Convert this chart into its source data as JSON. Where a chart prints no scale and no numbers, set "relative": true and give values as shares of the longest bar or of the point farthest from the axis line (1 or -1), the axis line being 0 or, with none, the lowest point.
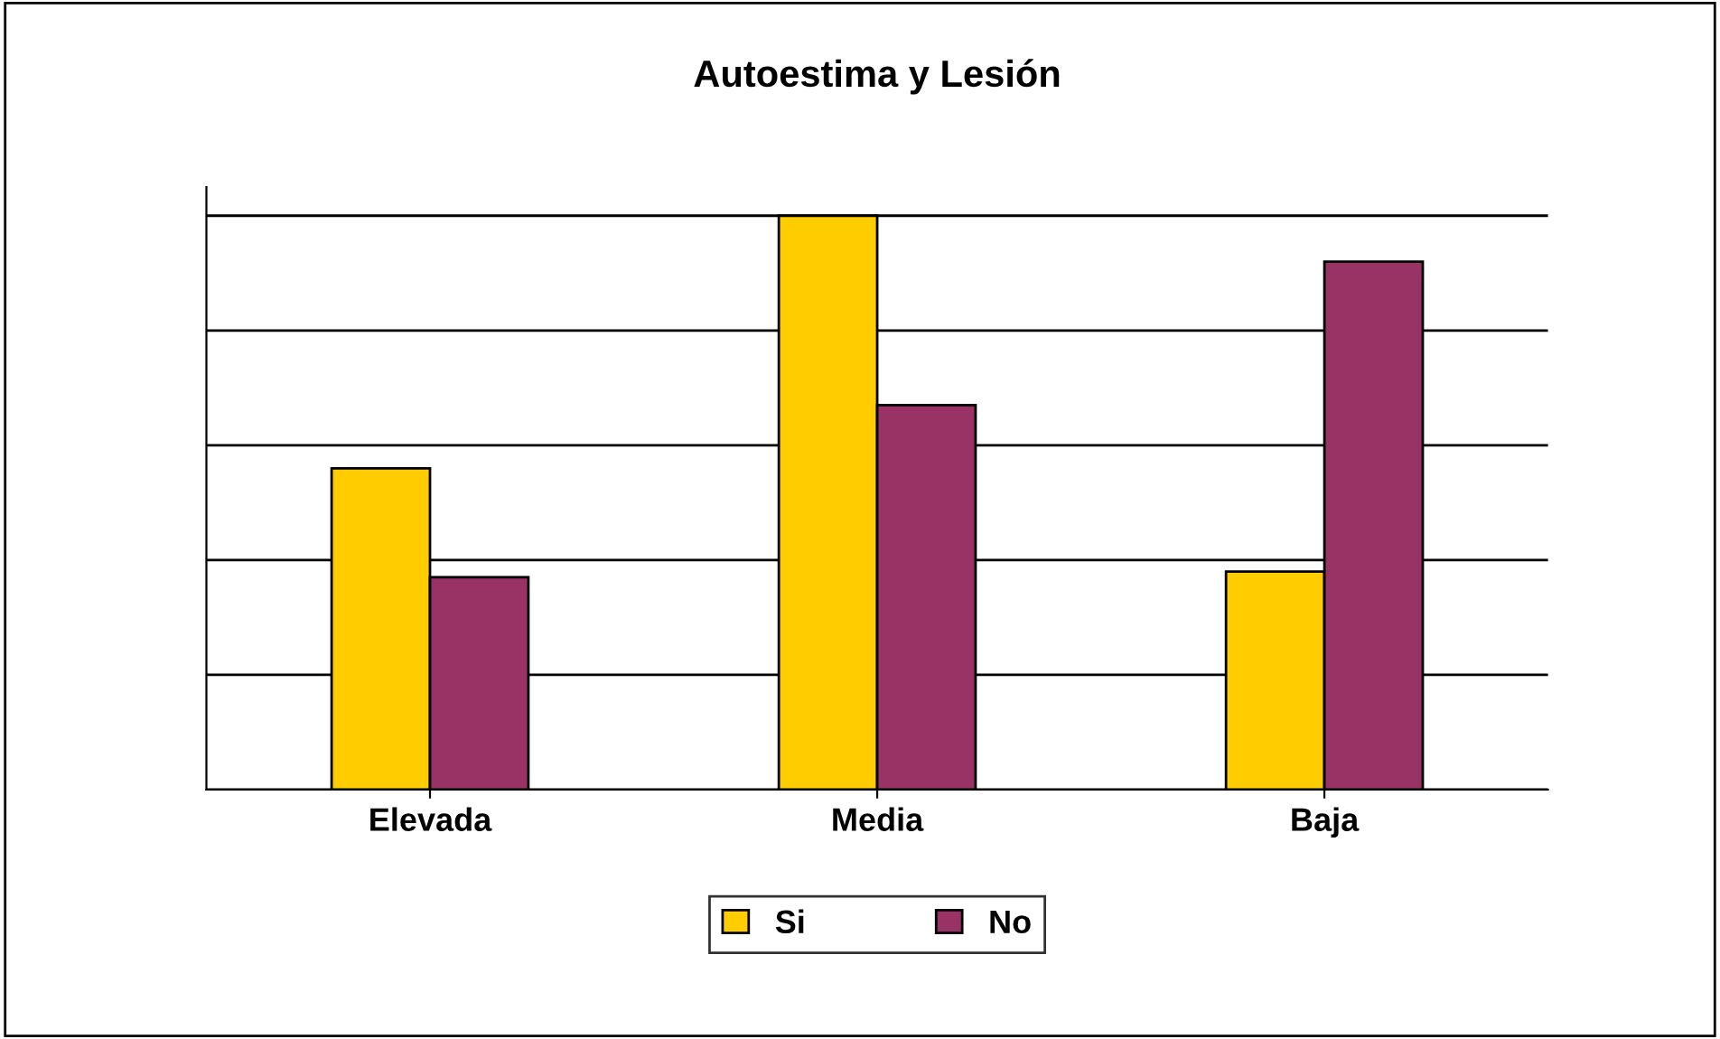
{
  "chart_data": {
    "type": "bar",
    "title": "Autoestima y Lesión",
    "categories": [
      "Elevada",
      "Media",
      "Baja"
    ],
    "series": [
      {
        "name": "Si",
        "color": "#ffcc00",
        "values": [
          0.56,
          1,
          0.38
        ]
      },
      {
        "name": "No",
        "color": "#993366",
        "values": [
          0.37,
          0.67,
          0.92
        ]
      }
    ],
    "relative": true,
    "grid": "y",
    "legend": "bottom"
  }
}
